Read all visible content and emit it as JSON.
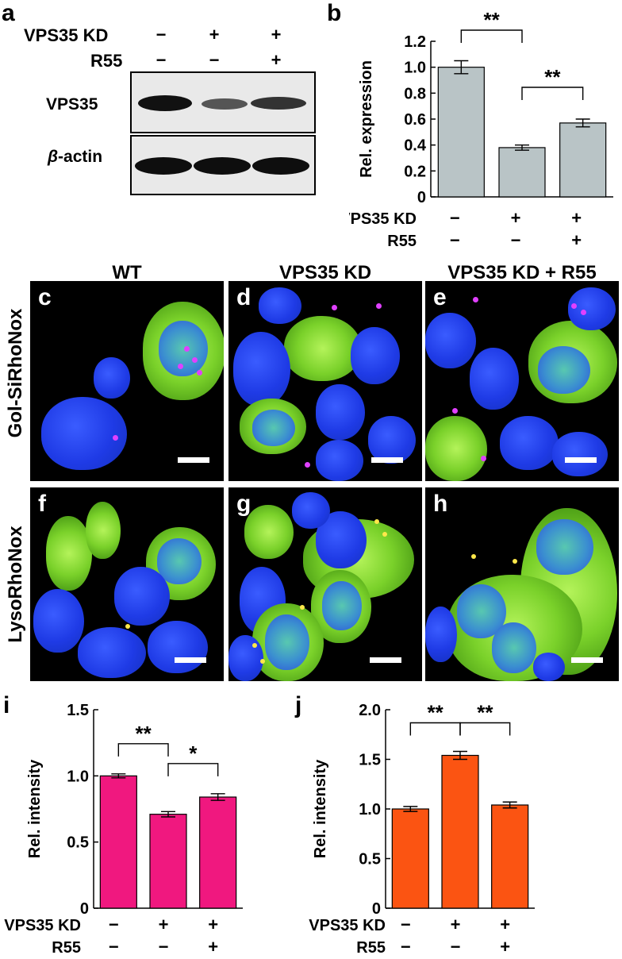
{
  "panel_letters": {
    "a": "a",
    "b": "b",
    "c": "c",
    "d": "d",
    "e": "e",
    "f": "f",
    "g": "g",
    "h": "h",
    "i": "i",
    "j": "j"
  },
  "condition_labels": {
    "vps35kd": "VPS35 KD",
    "r55": "R55"
  },
  "signs": {
    "minus": "−",
    "plus": "+"
  },
  "conditions": [
    {
      "kd": "−",
      "r55": "−"
    },
    {
      "kd": "+",
      "r55": "−"
    },
    {
      "kd": "+",
      "r55": "+"
    }
  ],
  "western": {
    "rows": [
      {
        "label": "VPS35",
        "band_intensity": [
          1.0,
          0.4,
          0.6
        ]
      },
      {
        "label_symbol": "β",
        "label_suffix": "-actin",
        "band_intensity": [
          1.0,
          1.0,
          1.0
        ]
      }
    ]
  },
  "microscopy": {
    "column_titles": [
      "WT",
      "VPS35 KD",
      "VPS35 KD + R55"
    ],
    "row_labels": [
      "Gol-SiRhoNox",
      "LysoRhoNox"
    ]
  },
  "chart_data": [
    {
      "id": "b",
      "type": "bar",
      "categories": [
        "1",
        "2",
        "3"
      ],
      "values": [
        1.0,
        0.38,
        0.57
      ],
      "errors": [
        0.05,
        0.02,
        0.03
      ],
      "ylabel": "Rel. expression",
      "ylim": [
        0,
        1.2
      ],
      "yticks": [
        "0",
        "0.2",
        "0.4",
        "0.6",
        "0.8",
        "1.0",
        "1.2"
      ],
      "color": "#b9c4c6",
      "significance": [
        {
          "from": 0,
          "to": 1,
          "label": "**"
        },
        {
          "from": 1,
          "to": 2,
          "label": "**"
        }
      ]
    },
    {
      "id": "i",
      "type": "bar",
      "categories": [
        "1",
        "2",
        "3"
      ],
      "values": [
        1.0,
        0.71,
        0.84
      ],
      "errors": [
        0.015,
        0.02,
        0.025
      ],
      "ylabel": "Rel. intensity",
      "ylim": [
        0,
        1.5
      ],
      "yticks": [
        "0",
        "0.5",
        "1.0",
        "1.5"
      ],
      "color": "#f0187f",
      "significance": [
        {
          "from": 0,
          "to": 1,
          "label": "**"
        },
        {
          "from": 1,
          "to": 2,
          "label": "*"
        }
      ]
    },
    {
      "id": "j",
      "type": "bar",
      "categories": [
        "1",
        "2",
        "3"
      ],
      "values": [
        1.0,
        1.54,
        1.04
      ],
      "errors": [
        0.025,
        0.04,
        0.03
      ],
      "ylabel": "Rel. intensity",
      "ylim": [
        0,
        2.0
      ],
      "yticks": [
        "0",
        "0.5",
        "1.0",
        "1.5",
        "2.0"
      ],
      "color": "#fb5412",
      "significance": [
        {
          "from": 0,
          "to": 1,
          "label": "**"
        },
        {
          "from": 1,
          "to": 2,
          "label": "**"
        }
      ]
    }
  ]
}
